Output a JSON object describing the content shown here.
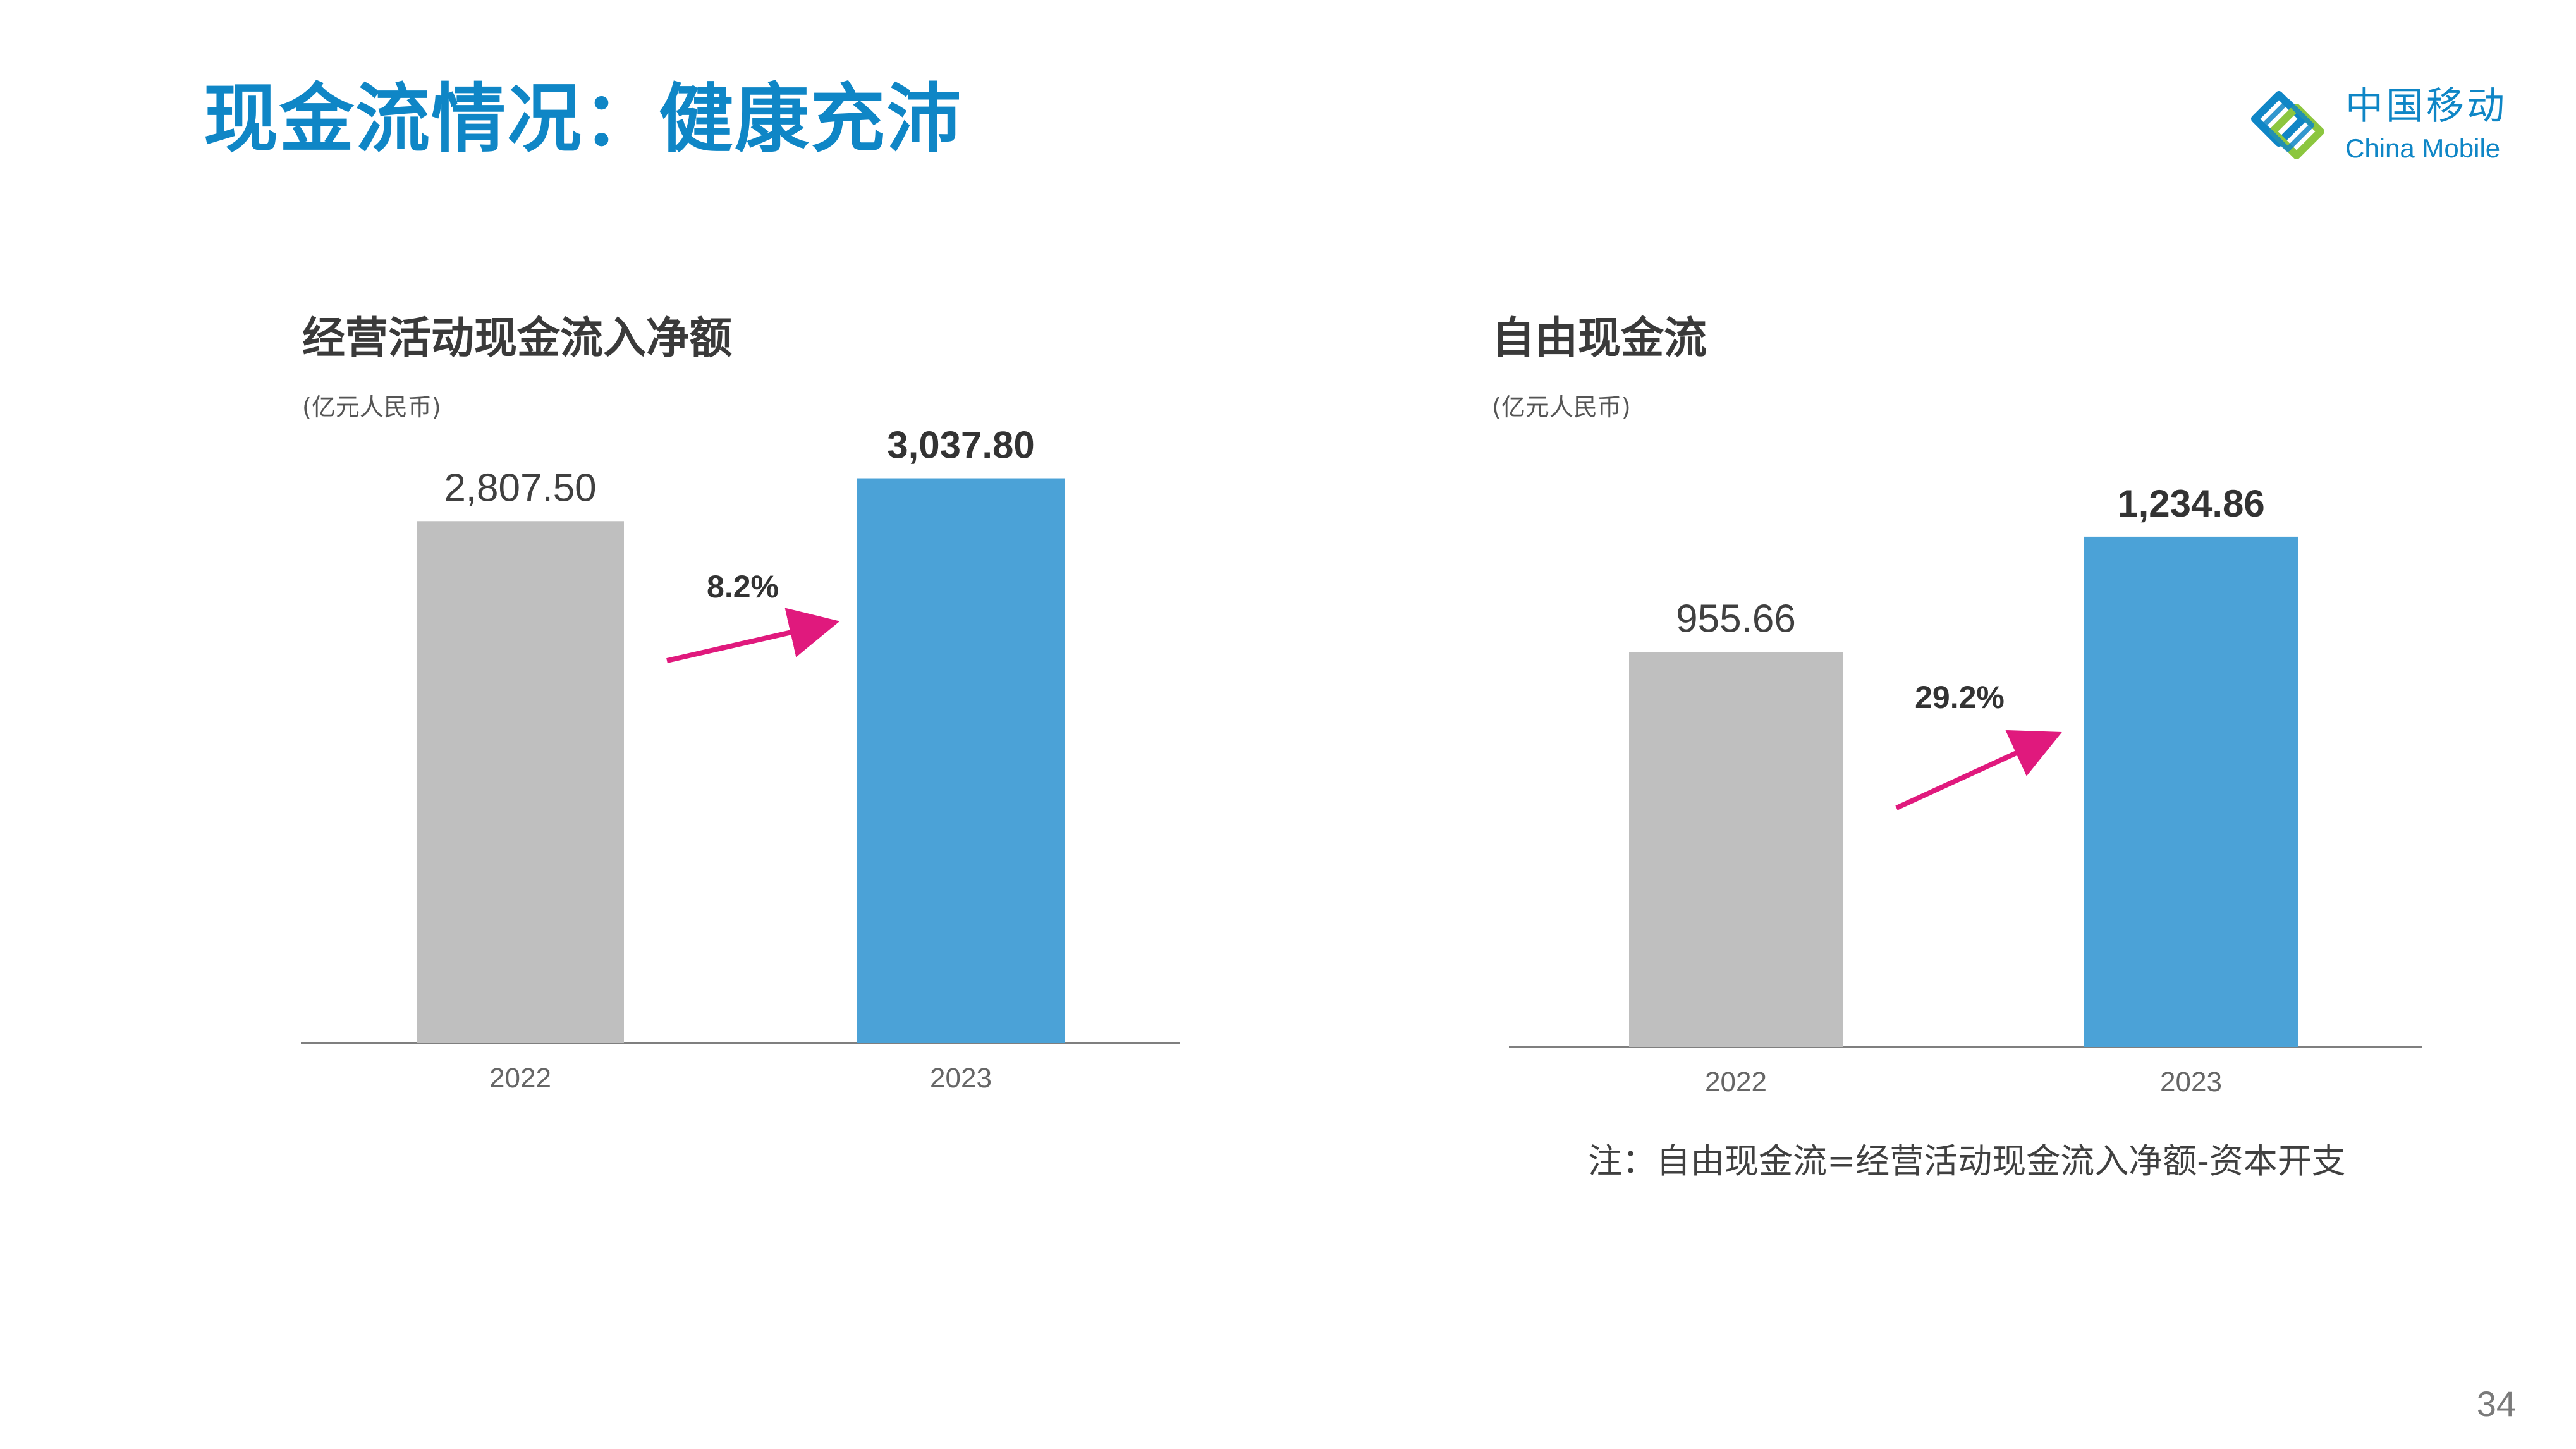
{
  "page": {
    "title": "现金流情况：健康充沛",
    "page_number": "34",
    "note": "注：自由现金流=经营活动现金流入净额-资本开支"
  },
  "logo": {
    "cn": "中国移动",
    "en": "China Mobile"
  },
  "colors": {
    "brand": "#0f86c6",
    "bar_prev": "#bfbfbf",
    "bar_curr": "#4ba2d7",
    "arrow": "#e0197d"
  },
  "chart_data": [
    {
      "type": "bar",
      "title": "经营活动现金流入净额",
      "unit": "(亿元人民币)",
      "categories": [
        "2022",
        "2023"
      ],
      "values": [
        2807.5,
        3037.8
      ],
      "value_labels": [
        "2,807.50",
        "3,037.80"
      ],
      "growth_label": "8.2%",
      "ylim": [
        0,
        3400
      ]
    },
    {
      "type": "bar",
      "title": "自由现金流",
      "unit": "(亿元人民币)",
      "categories": [
        "2022",
        "2023"
      ],
      "values": [
        955.66,
        1234.86
      ],
      "value_labels": [
        "955.66",
        "1,234.86"
      ],
      "growth_label": "29.2%",
      "ylim": [
        0,
        1530
      ]
    }
  ]
}
